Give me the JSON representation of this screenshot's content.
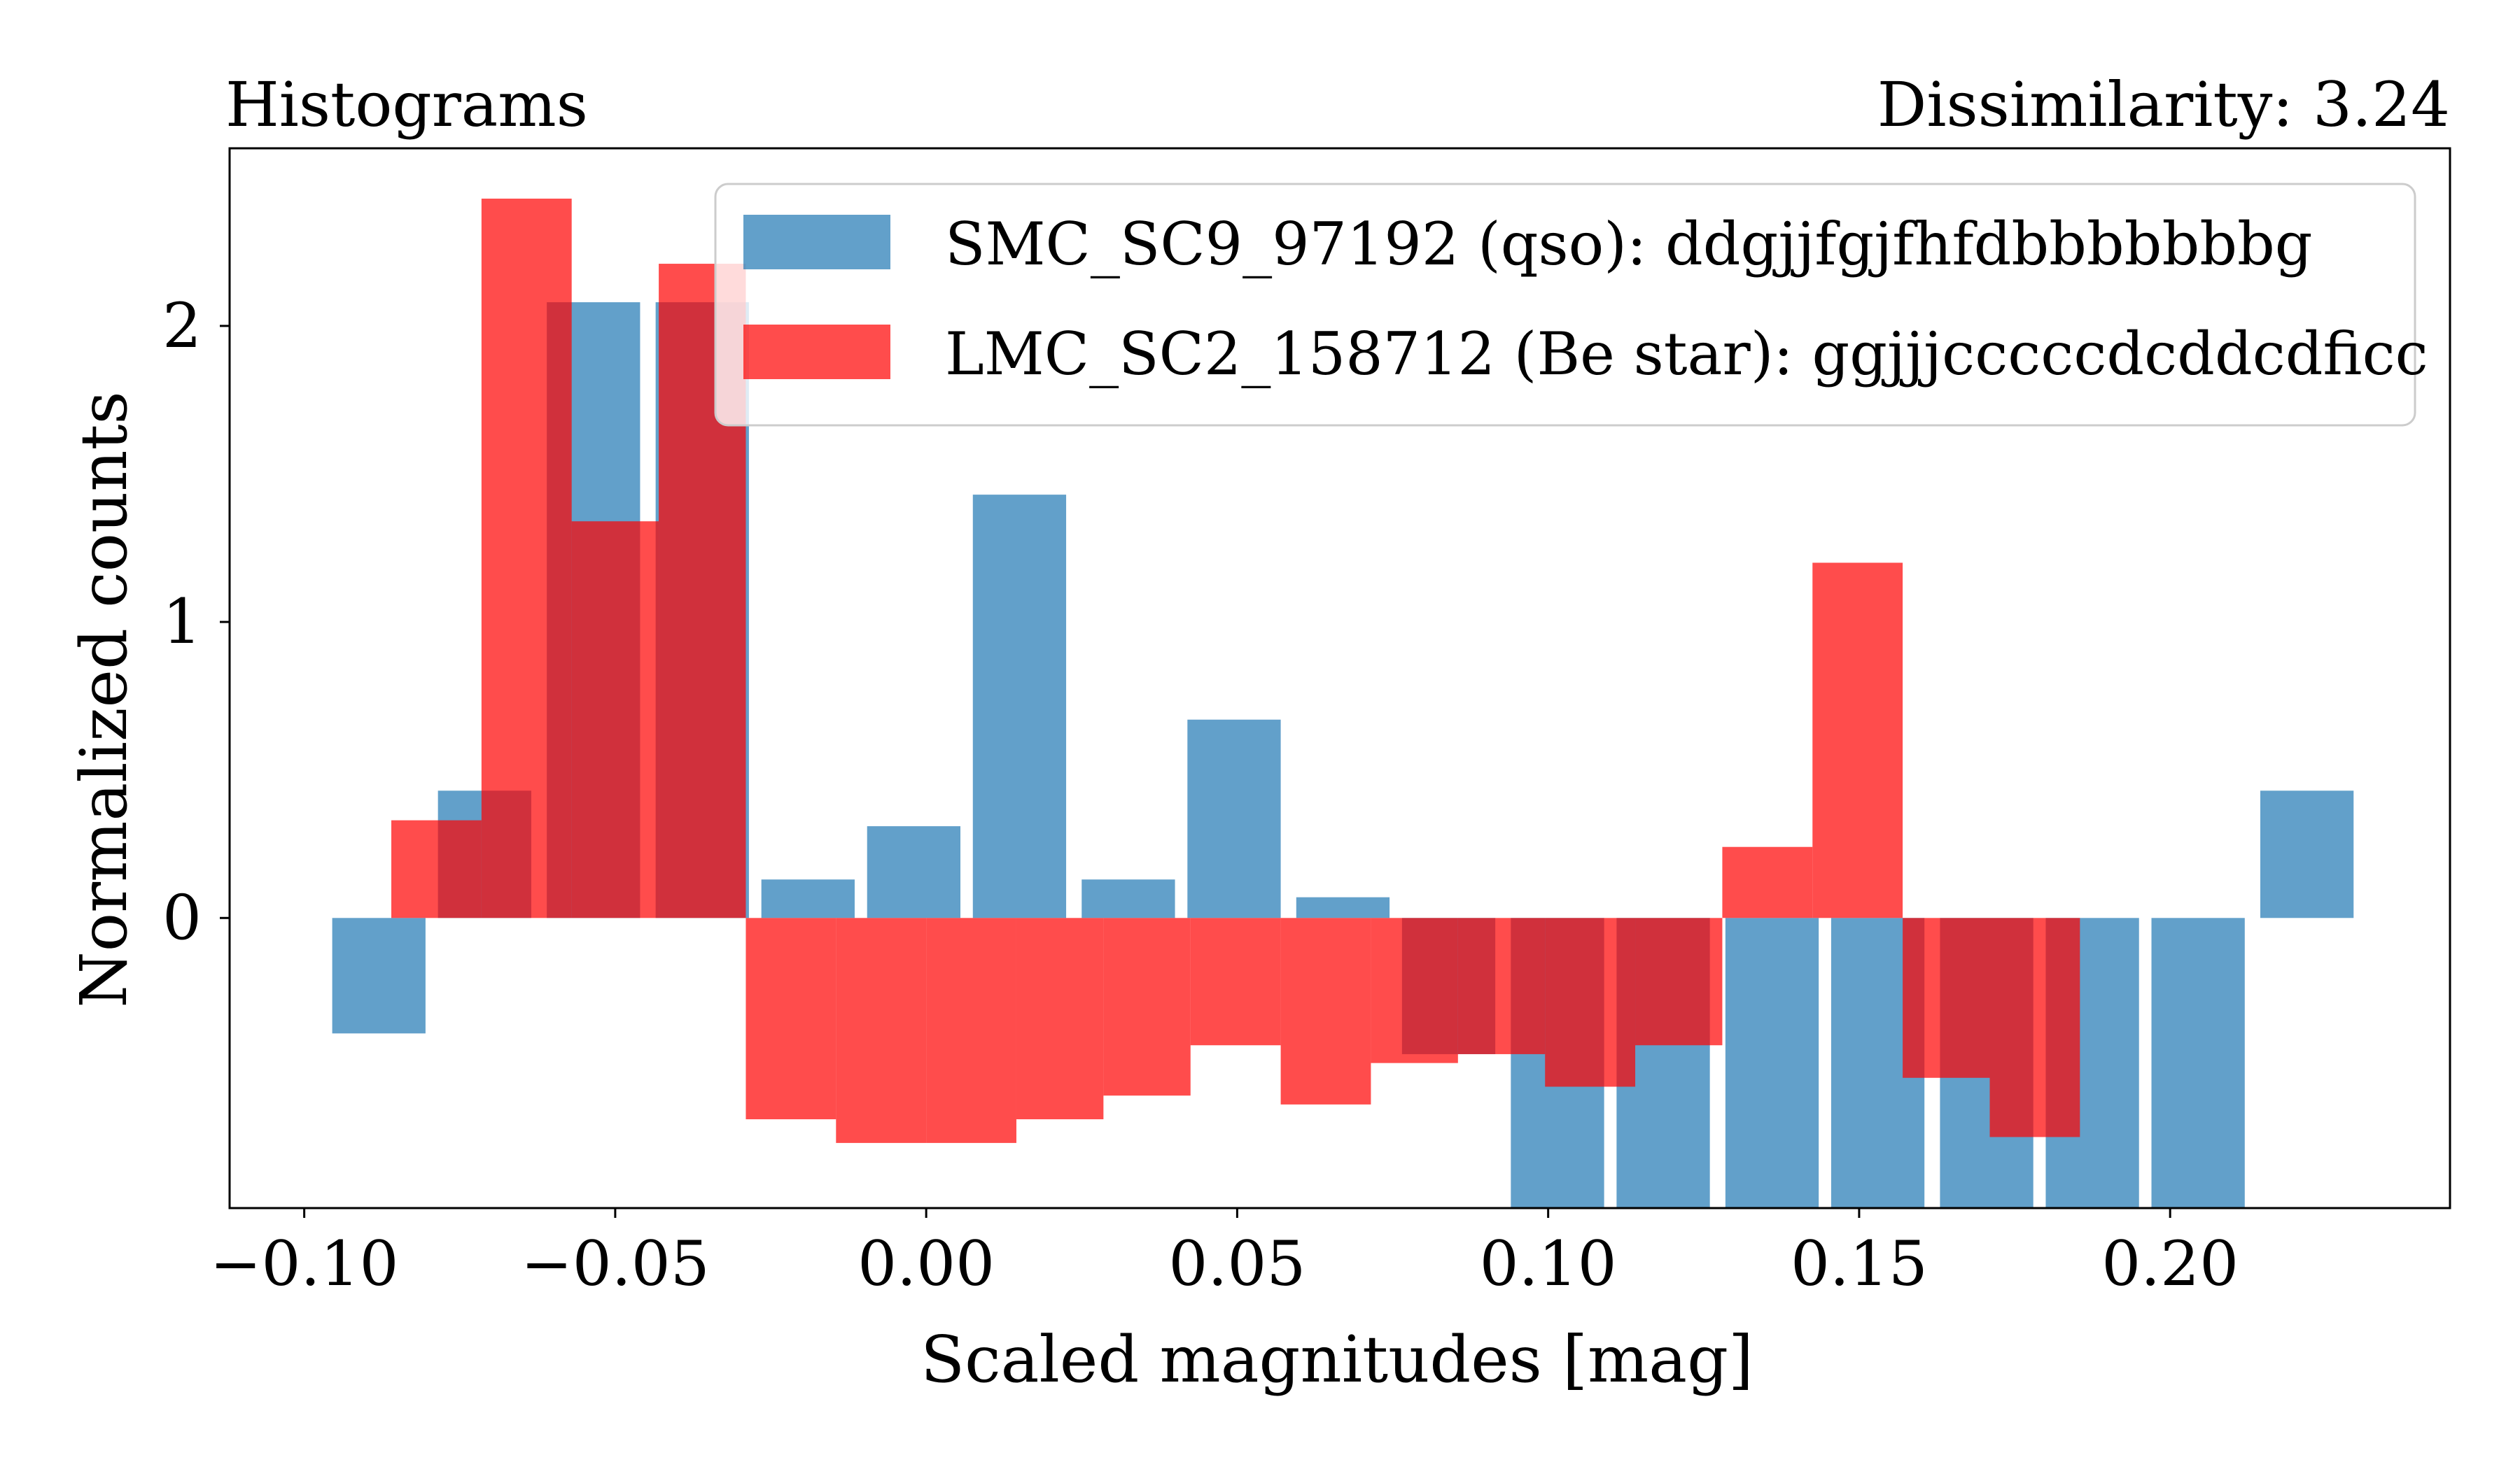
{
  "chart_data": {
    "type": "bar",
    "title_left": "Histograms",
    "title_right": "Dissimilarity: 3.24",
    "xlabel": "Scaled magnitudes [mag]",
    "ylabel": "Normalized counts",
    "xlim": [
      -0.112,
      0.245
    ],
    "ylim": [
      -0.98,
      2.6
    ],
    "x_ticks": [
      -0.1,
      -0.05,
      0.0,
      0.05,
      0.1,
      0.15,
      0.2
    ],
    "x_tick_labels": [
      "−0.10",
      "−0.05",
      "0.00",
      "0.05",
      "0.10",
      "0.15",
      "0.20"
    ],
    "y_ticks": [
      0,
      1,
      2
    ],
    "y_tick_labels": [
      "0",
      "1",
      "2"
    ],
    "grid": false,
    "legend_position": "top-right",
    "series": [
      {
        "name": "SMC_SC9_97192 (qso): ddgjjfgjfhfdbbbbbbbg",
        "color": "#1f77b4",
        "opacity": 0.7,
        "bars": [
          {
            "x0": -0.0955,
            "x1": -0.0805,
            "v": -0.39
          },
          {
            "x0": -0.0785,
            "x1": -0.0635,
            "v": 0.43
          },
          {
            "x0": -0.061,
            "x1": -0.046,
            "v": 2.08
          },
          {
            "x0": -0.0435,
            "x1": -0.0285,
            "v": 2.08
          },
          {
            "x0": -0.0265,
            "x1": -0.0115,
            "v": 0.13
          },
          {
            "x0": -0.0095,
            "x1": 0.0055,
            "v": 0.31
          },
          {
            "x0": 0.0075,
            "x1": 0.0225,
            "v": 1.43
          },
          {
            "x0": 0.025,
            "x1": 0.04,
            "v": 0.13
          },
          {
            "x0": 0.042,
            "x1": 0.057,
            "v": 0.67
          },
          {
            "x0": 0.0595,
            "x1": 0.0745,
            "v": 0.07
          },
          {
            "x0": 0.0765,
            "x1": 0.0915,
            "v": -0.46
          },
          {
            "x0": 0.094,
            "x1": 0.109,
            "v": -0.98
          },
          {
            "x0": 0.111,
            "x1": 0.126,
            "v": -0.98
          },
          {
            "x0": 0.1285,
            "x1": 0.1435,
            "v": -0.98
          },
          {
            "x0": 0.1455,
            "x1": 0.1605,
            "v": -0.98
          },
          {
            "x0": 0.163,
            "x1": 0.178,
            "v": -0.98
          },
          {
            "x0": 0.18,
            "x1": 0.195,
            "v": -0.98
          },
          {
            "x0": 0.197,
            "x1": 0.212,
            "v": -0.98
          },
          {
            "x0": 0.2145,
            "x1": 0.2295,
            "v": 0.43
          }
        ]
      },
      {
        "name": "LMC_SC2_158712 (Be star): ggjjjcccccdcddcdficc",
        "color": "#ff0000",
        "opacity": 0.7,
        "bars": [
          {
            "x0": -0.086,
            "x1": -0.0715,
            "v": 0.33
          },
          {
            "x0": -0.0715,
            "x1": -0.057,
            "v": 2.43
          },
          {
            "x0": -0.057,
            "x1": -0.043,
            "v": 1.34
          },
          {
            "x0": -0.043,
            "x1": -0.029,
            "v": 2.21
          },
          {
            "x0": -0.029,
            "x1": -0.0145,
            "v": -0.68
          },
          {
            "x0": -0.0145,
            "x1": 0.0,
            "v": -0.76
          },
          {
            "x0": 0.0,
            "x1": 0.0145,
            "v": -0.76
          },
          {
            "x0": 0.0145,
            "x1": 0.0285,
            "v": -0.68
          },
          {
            "x0": 0.0285,
            "x1": 0.0425,
            "v": -0.6
          },
          {
            "x0": 0.0425,
            "x1": 0.057,
            "v": -0.43
          },
          {
            "x0": 0.057,
            "x1": 0.0715,
            "v": -0.63
          },
          {
            "x0": 0.0715,
            "x1": 0.0855,
            "v": -0.49
          },
          {
            "x0": 0.0855,
            "x1": 0.0995,
            "v": -0.46
          },
          {
            "x0": 0.0995,
            "x1": 0.114,
            "v": -0.57
          },
          {
            "x0": 0.114,
            "x1": 0.128,
            "v": -0.43
          },
          {
            "x0": 0.128,
            "x1": 0.1425,
            "v": 0.24
          },
          {
            "x0": 0.1425,
            "x1": 0.157,
            "v": 1.2
          },
          {
            "x0": 0.157,
            "x1": 0.171,
            "v": -0.54
          },
          {
            "x0": 0.171,
            "x1": 0.1855,
            "v": -0.74
          }
        ]
      }
    ]
  }
}
